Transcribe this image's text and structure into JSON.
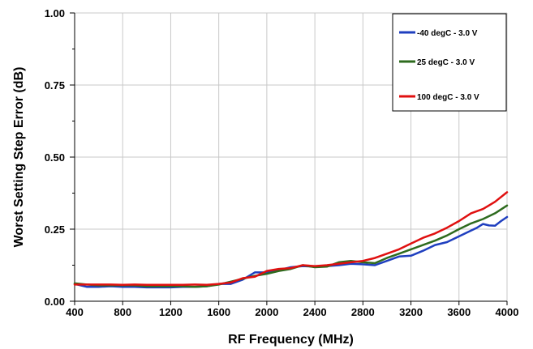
{
  "chart_data": {
    "type": "line",
    "title": "",
    "xlabel": "RF Frequency (MHz)",
    "ylabel": "Worst Setting Step Error (dB)",
    "xlim": [
      400,
      4000
    ],
    "ylim": [
      0,
      1.0
    ],
    "x_ticks": [
      "400",
      "800",
      "1200",
      "1600",
      "2000",
      "2400",
      "2800",
      "3200",
      "3600",
      "4000"
    ],
    "y_ticks": [
      "0.00",
      "0.25",
      "0.50",
      "0.75",
      "1.00"
    ],
    "grid": true,
    "legend_position": "top-right",
    "series": [
      {
        "name": "-40 degC - 3.0 V",
        "color": "#1f3fbf",
        "points": [
          [
            400,
            0.06
          ],
          [
            500,
            0.05
          ],
          [
            600,
            0.05
          ],
          [
            700,
            0.052
          ],
          [
            800,
            0.05
          ],
          [
            900,
            0.05
          ],
          [
            1000,
            0.048
          ],
          [
            1100,
            0.048
          ],
          [
            1200,
            0.048
          ],
          [
            1300,
            0.05
          ],
          [
            1400,
            0.05
          ],
          [
            1500,
            0.052
          ],
          [
            1600,
            0.06
          ],
          [
            1700,
            0.06
          ],
          [
            1800,
            0.075
          ],
          [
            1900,
            0.1
          ],
          [
            2000,
            0.1
          ],
          [
            2100,
            0.108
          ],
          [
            2200,
            0.118
          ],
          [
            2300,
            0.122
          ],
          [
            2400,
            0.12
          ],
          [
            2500,
            0.122
          ],
          [
            2600,
            0.125
          ],
          [
            2700,
            0.13
          ],
          [
            2800,
            0.128
          ],
          [
            2900,
            0.125
          ],
          [
            3000,
            0.14
          ],
          [
            3100,
            0.155
          ],
          [
            3200,
            0.158
          ],
          [
            3300,
            0.175
          ],
          [
            3400,
            0.195
          ],
          [
            3500,
            0.205
          ],
          [
            3600,
            0.225
          ],
          [
            3700,
            0.245
          ],
          [
            3750,
            0.255
          ],
          [
            3800,
            0.268
          ],
          [
            3850,
            0.263
          ],
          [
            3900,
            0.262
          ],
          [
            3950,
            0.278
          ],
          [
            4000,
            0.292
          ]
        ]
      },
      {
        "name": "25 degC - 3.0 V",
        "color": "#2e6b1e",
        "points": [
          [
            400,
            0.062
          ],
          [
            500,
            0.058
          ],
          [
            600,
            0.055
          ],
          [
            700,
            0.055
          ],
          [
            800,
            0.055
          ],
          [
            900,
            0.055
          ],
          [
            1000,
            0.052
          ],
          [
            1100,
            0.052
          ],
          [
            1200,
            0.052
          ],
          [
            1300,
            0.052
          ],
          [
            1400,
            0.05
          ],
          [
            1500,
            0.052
          ],
          [
            1600,
            0.058
          ],
          [
            1700,
            0.068
          ],
          [
            1800,
            0.078
          ],
          [
            1900,
            0.088
          ],
          [
            2000,
            0.095
          ],
          [
            2100,
            0.105
          ],
          [
            2200,
            0.112
          ],
          [
            2300,
            0.125
          ],
          [
            2400,
            0.118
          ],
          [
            2500,
            0.12
          ],
          [
            2600,
            0.135
          ],
          [
            2700,
            0.14
          ],
          [
            2800,
            0.135
          ],
          [
            2900,
            0.132
          ],
          [
            3000,
            0.15
          ],
          [
            3100,
            0.165
          ],
          [
            3200,
            0.18
          ],
          [
            3300,
            0.195
          ],
          [
            3400,
            0.21
          ],
          [
            3500,
            0.228
          ],
          [
            3600,
            0.25
          ],
          [
            3700,
            0.27
          ],
          [
            3800,
            0.285
          ],
          [
            3900,
            0.305
          ],
          [
            4000,
            0.332
          ]
        ]
      },
      {
        "name": "100 degC - 3.0 V",
        "color": "#e01010",
        "points": [
          [
            400,
            0.058
          ],
          [
            500,
            0.058
          ],
          [
            600,
            0.058
          ],
          [
            700,
            0.058
          ],
          [
            800,
            0.057
          ],
          [
            900,
            0.058
          ],
          [
            1000,
            0.057
          ],
          [
            1100,
            0.057
          ],
          [
            1200,
            0.057
          ],
          [
            1300,
            0.057
          ],
          [
            1400,
            0.058
          ],
          [
            1500,
            0.057
          ],
          [
            1600,
            0.06
          ],
          [
            1700,
            0.065
          ],
          [
            1800,
            0.08
          ],
          [
            1900,
            0.085
          ],
          [
            2000,
            0.105
          ],
          [
            2100,
            0.112
          ],
          [
            2200,
            0.115
          ],
          [
            2300,
            0.125
          ],
          [
            2400,
            0.122
          ],
          [
            2500,
            0.125
          ],
          [
            2600,
            0.13
          ],
          [
            2700,
            0.135
          ],
          [
            2800,
            0.14
          ],
          [
            2900,
            0.15
          ],
          [
            3000,
            0.165
          ],
          [
            3100,
            0.18
          ],
          [
            3200,
            0.2
          ],
          [
            3300,
            0.22
          ],
          [
            3400,
            0.235
          ],
          [
            3500,
            0.255
          ],
          [
            3600,
            0.278
          ],
          [
            3700,
            0.305
          ],
          [
            3800,
            0.32
          ],
          [
            3900,
            0.345
          ],
          [
            4000,
            0.378
          ]
        ]
      }
    ]
  }
}
